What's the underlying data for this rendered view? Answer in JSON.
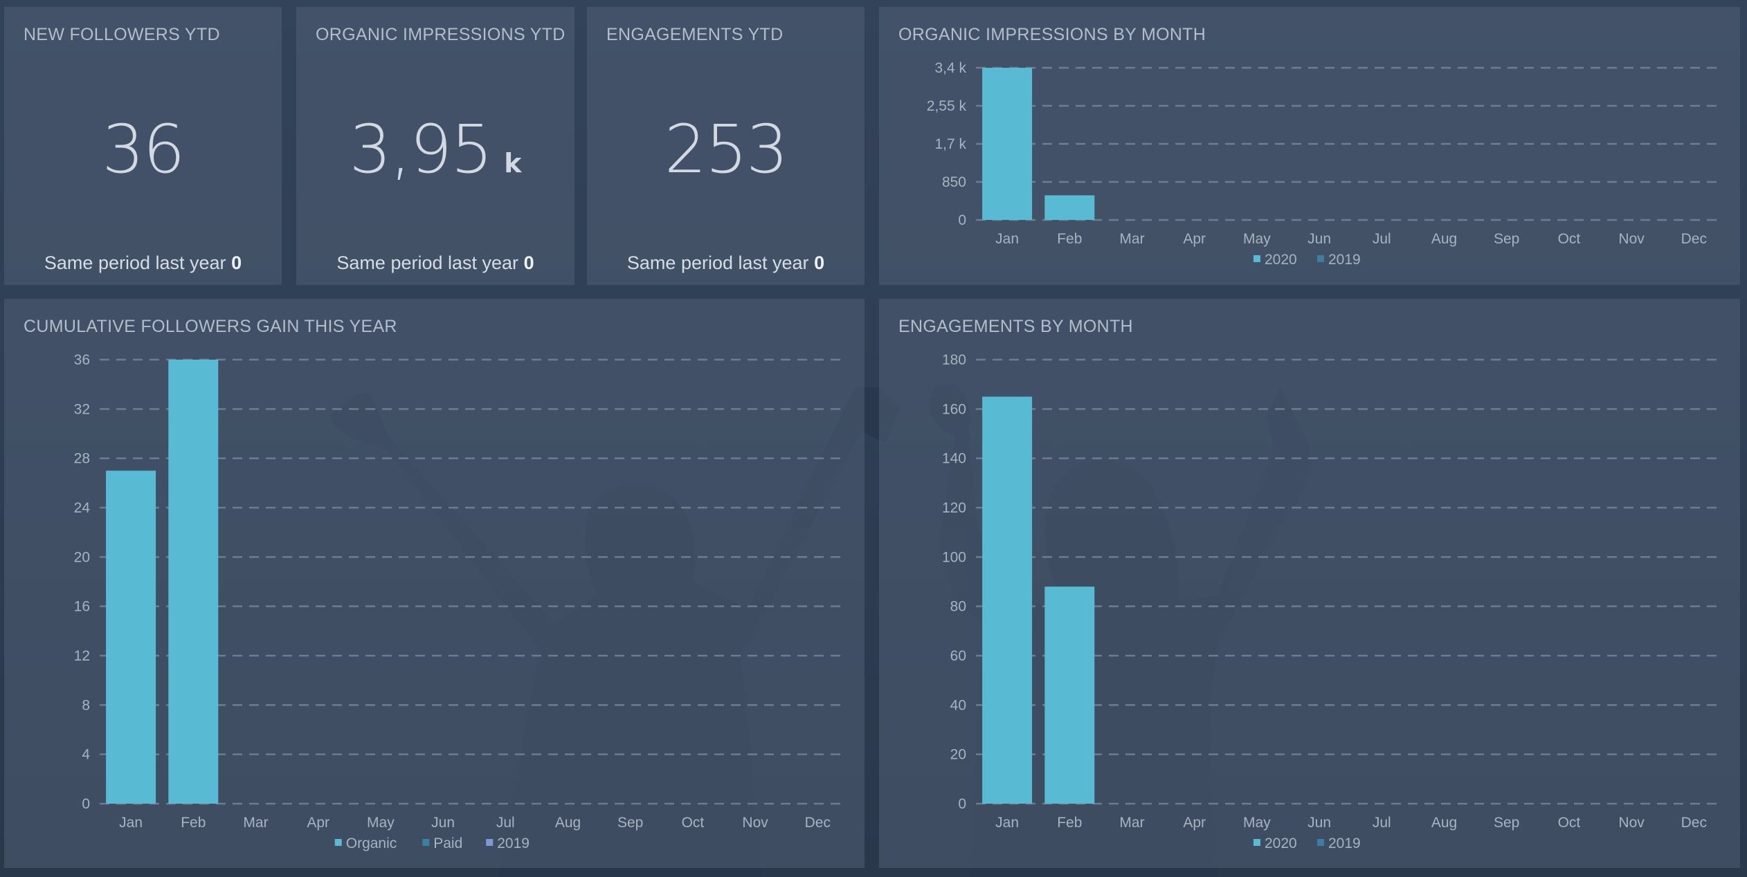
{
  "colors": {
    "bar": "#58bad3",
    "series_2019": "#3f7ea3",
    "series_paid": "#3a7fa5",
    "series_2019_alt": "#7c9bd3",
    "grid": "#7c8799"
  },
  "kpis": [
    {
      "title": "NEW FOLLOWERS YTD",
      "value": "36",
      "unit": "",
      "compare_label": "Same period last year",
      "compare_value": "0"
    },
    {
      "title": "ORGANIC IMPRESSIONS YTD",
      "value": "3,95",
      "unit": "k",
      "compare_label": "Same period last year",
      "compare_value": "0"
    },
    {
      "title": "ENGAGEMENTS YTD",
      "value": "253",
      "unit": "",
      "compare_label": "Same period last year",
      "compare_value": "0"
    }
  ],
  "chart_data": [
    {
      "id": "impressions",
      "type": "bar",
      "title": "ORGANIC IMPRESSIONS BY MONTH",
      "categories": [
        "Jan",
        "Feb",
        "Mar",
        "Apr",
        "May",
        "Jun",
        "Jul",
        "Aug",
        "Sep",
        "Oct",
        "Nov",
        "Dec"
      ],
      "series": [
        {
          "name": "2020",
          "values": [
            3400,
            550,
            null,
            null,
            null,
            null,
            null,
            null,
            null,
            null,
            null,
            null
          ]
        },
        {
          "name": "2019",
          "values": [
            null,
            null,
            null,
            null,
            null,
            null,
            null,
            null,
            null,
            null,
            null,
            null
          ]
        }
      ],
      "ylim": [
        0,
        3400
      ],
      "yticks": [
        0,
        850,
        1700,
        2550,
        3400
      ],
      "ytick_labels": [
        "0",
        "850",
        "1,7 k",
        "2,55 k",
        "3,4 k"
      ],
      "grid": true,
      "legend_position": "bottom"
    },
    {
      "id": "followers",
      "type": "bar",
      "title": "CUMULATIVE FOLLOWERS GAIN THIS YEAR",
      "categories": [
        "Jan",
        "Feb",
        "Mar",
        "Apr",
        "May",
        "Jun",
        "Jul",
        "Aug",
        "Sep",
        "Oct",
        "Nov",
        "Dec"
      ],
      "series": [
        {
          "name": "Organic",
          "values": [
            27,
            36,
            null,
            null,
            null,
            null,
            null,
            null,
            null,
            null,
            null,
            null
          ]
        },
        {
          "name": "Paid",
          "values": [
            null,
            null,
            null,
            null,
            null,
            null,
            null,
            null,
            null,
            null,
            null,
            null
          ]
        },
        {
          "name": "2019",
          "values": [
            null,
            null,
            null,
            null,
            null,
            null,
            null,
            null,
            null,
            null,
            null,
            null
          ]
        }
      ],
      "ylim": [
        0,
        36
      ],
      "yticks": [
        0,
        4,
        8,
        12,
        16,
        20,
        24,
        28,
        32,
        36
      ],
      "ytick_labels": [
        "0",
        "4",
        "8",
        "12",
        "16",
        "20",
        "24",
        "28",
        "32",
        "36"
      ],
      "grid": true,
      "legend_position": "bottom"
    },
    {
      "id": "engagements",
      "type": "bar",
      "title": "ENGAGEMENTS BY MONTH",
      "categories": [
        "Jan",
        "Feb",
        "Mar",
        "Apr",
        "May",
        "Jun",
        "Jul",
        "Aug",
        "Sep",
        "Oct",
        "Nov",
        "Dec"
      ],
      "series": [
        {
          "name": "2020",
          "values": [
            165,
            88,
            null,
            null,
            null,
            null,
            null,
            null,
            null,
            null,
            null,
            null
          ]
        },
        {
          "name": "2019",
          "values": [
            null,
            null,
            null,
            null,
            null,
            null,
            null,
            null,
            null,
            null,
            null,
            null
          ]
        }
      ],
      "ylim": [
        0,
        180
      ],
      "yticks": [
        0,
        20,
        40,
        60,
        80,
        100,
        120,
        140,
        160,
        180
      ],
      "ytick_labels": [
        "0",
        "20",
        "40",
        "60",
        "80",
        "100",
        "120",
        "140",
        "160",
        "180"
      ],
      "grid": true,
      "legend_position": "bottom"
    }
  ]
}
